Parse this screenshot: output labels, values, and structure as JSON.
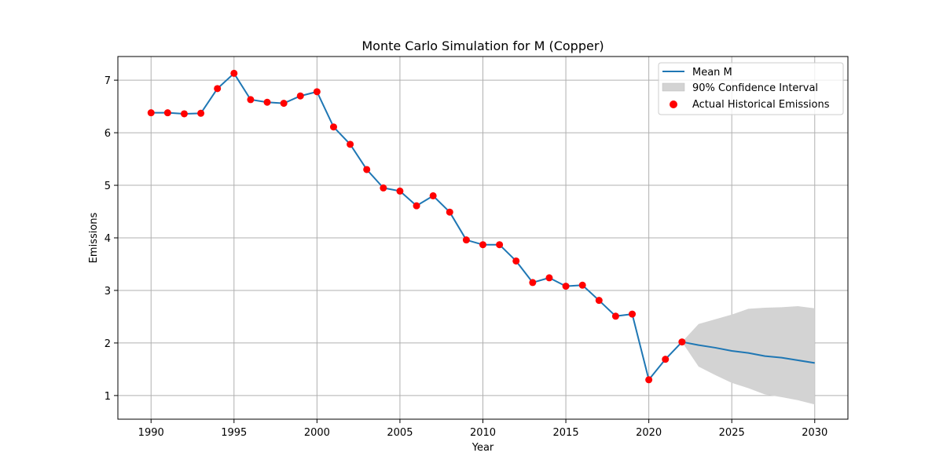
{
  "chart_data": {
    "type": "line",
    "title": "Monte Carlo Simulation for M (Copper)",
    "xlabel": "Year",
    "ylabel": "Emissions",
    "xlim": [
      1988,
      2032
    ],
    "ylim": [
      0.55,
      7.45
    ],
    "xticks": [
      1990,
      1995,
      2000,
      2005,
      2010,
      2015,
      2020,
      2025,
      2030
    ],
    "yticks": [
      1,
      2,
      3,
      4,
      5,
      6,
      7
    ],
    "grid": true,
    "legend_position": "top-right",
    "colors": {
      "mean_line": "#1f77b4",
      "confidence_band": "#d3d3d3",
      "actual_points": "#ff0000",
      "grid": "#b0b0b0"
    },
    "legend": [
      {
        "label": "Mean M",
        "kind": "line"
      },
      {
        "label": "90% Confidence Interval",
        "kind": "band"
      },
      {
        "label": "Actual Historical Emissions",
        "kind": "marker"
      }
    ],
    "series": [
      {
        "name": "Mean M",
        "x": [
          1990,
          1991,
          1992,
          1993,
          1994,
          1995,
          1996,
          1997,
          1998,
          1999,
          2000,
          2001,
          2002,
          2003,
          2004,
          2005,
          2006,
          2007,
          2008,
          2009,
          2010,
          2011,
          2012,
          2013,
          2014,
          2015,
          2016,
          2017,
          2018,
          2019,
          2020,
          2021,
          2022,
          2023,
          2024,
          2025,
          2026,
          2027,
          2028,
          2029,
          2030
        ],
        "y": [
          6.38,
          6.38,
          6.36,
          6.37,
          6.84,
          7.13,
          6.63,
          6.58,
          6.56,
          6.7,
          6.78,
          6.11,
          5.78,
          5.3,
          4.95,
          4.89,
          4.61,
          4.8,
          4.49,
          3.96,
          3.87,
          3.87,
          3.56,
          3.15,
          3.24,
          3.08,
          3.1,
          2.81,
          2.51,
          2.55,
          1.3,
          1.69,
          2.02,
          1.96,
          1.91,
          1.85,
          1.81,
          1.75,
          1.72,
          1.67,
          1.62
        ]
      },
      {
        "name": "90% Confidence Interval",
        "x": [
          2022,
          2023,
          2024,
          2025,
          2026,
          2027,
          2028,
          2029,
          2030
        ],
        "lower": [
          2.02,
          1.55,
          1.39,
          1.24,
          1.14,
          1.02,
          0.97,
          0.91,
          0.83
        ],
        "upper": [
          2.02,
          2.36,
          2.45,
          2.54,
          2.65,
          2.67,
          2.68,
          2.7,
          2.66
        ]
      },
      {
        "name": "Actual Historical Emissions",
        "x": [
          1990,
          1991,
          1992,
          1993,
          1994,
          1995,
          1996,
          1997,
          1998,
          1999,
          2000,
          2001,
          2002,
          2003,
          2004,
          2005,
          2006,
          2007,
          2008,
          2009,
          2010,
          2011,
          2012,
          2013,
          2014,
          2015,
          2016,
          2017,
          2018,
          2019,
          2020,
          2021,
          2022
        ],
        "y": [
          6.38,
          6.38,
          6.36,
          6.37,
          6.84,
          7.13,
          6.63,
          6.58,
          6.56,
          6.7,
          6.78,
          6.11,
          5.78,
          5.3,
          4.95,
          4.89,
          4.61,
          4.8,
          4.49,
          3.96,
          3.87,
          3.87,
          3.56,
          3.15,
          3.24,
          3.08,
          3.1,
          2.81,
          2.51,
          2.55,
          1.3,
          1.69,
          2.02
        ]
      }
    ]
  }
}
